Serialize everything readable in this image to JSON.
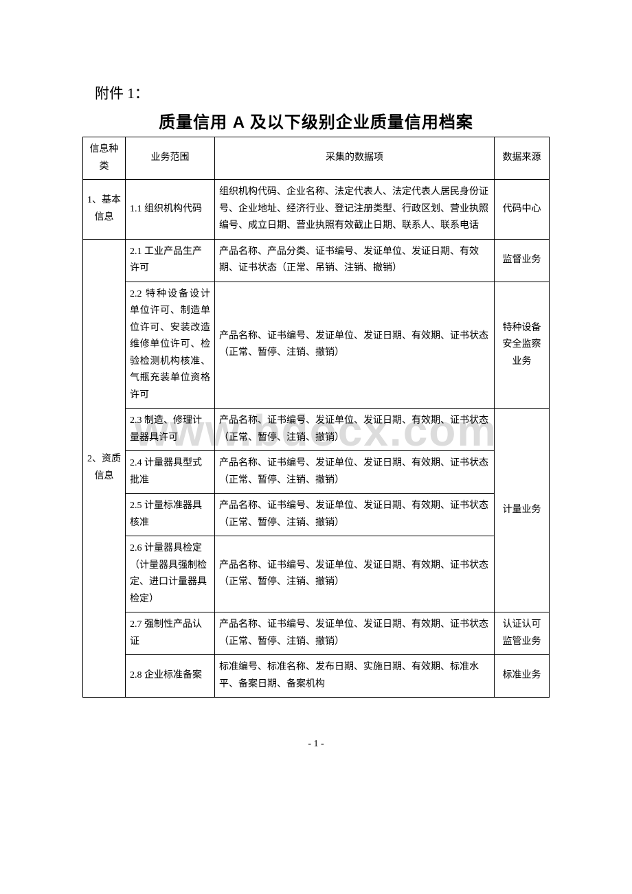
{
  "attachment_label": "附件 1：",
  "title": "质量信用 A 及以下级别企业质量信用档案",
  "watermark": "www.bdocx.com",
  "page_number": "- 1 -",
  "headers": {
    "category": "信息种类",
    "scope": "业务范围",
    "data_items": "采集的数据项",
    "source": "数据来源"
  },
  "section1": {
    "category": "1、基本信息",
    "row1": {
      "scope": "1.1 组织机构代码",
      "data": "组织机构代码、企业名称、法定代表人、法定代表人居民身份证号、企业地址、经济行业、登记注册类型、行政区划、营业执照编号、成立日期、营业执照有效截止日期、联系人、联系电话",
      "source": "代码中心"
    }
  },
  "section2": {
    "category": "2、资质信息",
    "row1": {
      "scope": "2.1 工业产品生产许可",
      "data": "产品名称、产品分类、证书编号、发证单位、发证日期、有效期、证书状态（正常、吊销、注销、撤销）",
      "source": "监督业务"
    },
    "row2": {
      "scope": "2.2 特种设备设计单位许可、制造单位许可、安装改造维修单位许可、检验检测机构核准、气瓶充装单位资格许可",
      "data": "产品名称、证书编号、发证单位、发证日期、有效期、证书状态（正常、暂停、注销、撤销）",
      "source": "特种设备安全监察业务"
    },
    "row3": {
      "scope": "2.3 制造、修理计量器具许可",
      "data": "产品名称、证书编号、发证单位、发证日期、有效期、证书状态（正常、暂停、注销、撤销）"
    },
    "row4": {
      "scope": "2.4 计量器具型式批准",
      "data": "产品名称、证书编号、发证单位、发证日期、有效期、证书状态（正常、暂停、注销、撤销）"
    },
    "row5": {
      "scope": "2.5 计量标准器具核准",
      "data": "产品名称、证书编号、发证单位、发证日期、有效期、证书状态（正常、暂停、注销、撤销）"
    },
    "source_metrology": "计量业务",
    "row6": {
      "scope": "2.6 计量器具检定（计量器具强制检定、进口计量器具检定）",
      "data": "产品名称、证书编号、发证单位、发证日期、有效期、证书状态（正常、暂停、注销、撤销）"
    },
    "row7": {
      "scope": "2.7 强制性产品认证",
      "data": "产品名称、证书编号、发证单位、发证日期、有效期、证书状态（正常、暂停、注销、撤销）",
      "source": "认证认可监管业务"
    },
    "row8": {
      "scope": "2.8 企业标准备案",
      "data": "标准编号、标准名称、发布日期、实施日期、有效期、标准水平、备案日期、备案机构",
      "source": "标准业务"
    }
  }
}
